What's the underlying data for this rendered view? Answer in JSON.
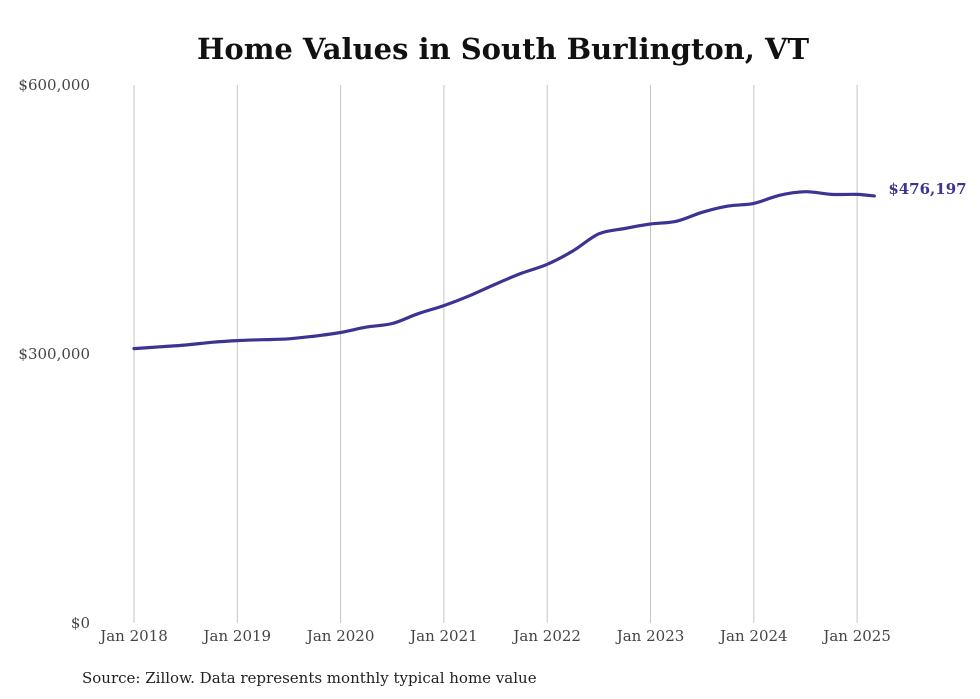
{
  "chart_data": {
    "type": "line",
    "title": "Home Values in South Burlington, VT",
    "source": "Source: Zillow. Data represents monthly typical home value",
    "xlabel": "",
    "ylabel": "",
    "x_ticks": [
      "Jan 2018",
      "Jan 2019",
      "Jan 2020",
      "Jan 2021",
      "Jan 2022",
      "Jan 2023",
      "Jan 2024",
      "Jan 2025"
    ],
    "y_ticks": [
      "$0",
      "$300,000",
      "$600,000"
    ],
    "ylim": [
      0,
      600000
    ],
    "xlim": [
      "2018-01",
      "2025-03"
    ],
    "grid": "vertical",
    "line_color": "#3b3492",
    "end_label": "$476,197",
    "series": [
      {
        "points": [
          [
            "2018-01",
            306000
          ],
          [
            "2018-04",
            308000
          ],
          [
            "2018-07",
            310000
          ],
          [
            "2018-10",
            313000
          ],
          [
            "2019-01",
            315000
          ],
          [
            "2019-04",
            316000
          ],
          [
            "2019-07",
            317000
          ],
          [
            "2019-10",
            320000
          ],
          [
            "2020-01",
            324000
          ],
          [
            "2020-04",
            330000
          ],
          [
            "2020-07",
            334000
          ],
          [
            "2020-10",
            345000
          ],
          [
            "2021-01",
            354000
          ],
          [
            "2021-04",
            365000
          ],
          [
            "2021-07",
            378000
          ],
          [
            "2021-10",
            390000
          ],
          [
            "2022-01",
            400000
          ],
          [
            "2022-04",
            415000
          ],
          [
            "2022-07",
            434000
          ],
          [
            "2022-10",
            440000
          ],
          [
            "2023-01",
            445000
          ],
          [
            "2023-04",
            448000
          ],
          [
            "2023-07",
            458000
          ],
          [
            "2023-10",
            465000
          ],
          [
            "2024-01",
            468000
          ],
          [
            "2024-04",
            477000
          ],
          [
            "2024-07",
            481000
          ],
          [
            "2024-10",
            478000
          ],
          [
            "2025-01",
            478000
          ],
          [
            "2025-03",
            476197
          ]
        ]
      }
    ]
  }
}
